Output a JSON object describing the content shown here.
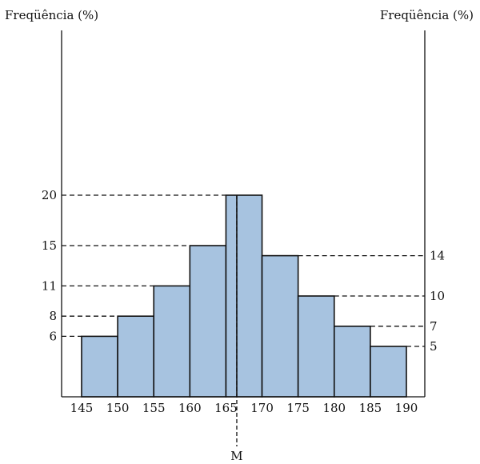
{
  "chart_data": {
    "type": "bar",
    "histogram": true,
    "bin_edges": [
      145,
      150,
      155,
      160,
      165,
      170,
      175,
      180,
      185,
      190
    ],
    "x_tick_labels": [
      "145",
      "150",
      "155",
      "160",
      "165",
      "170",
      "175",
      "180",
      "185",
      "190"
    ],
    "series": [
      {
        "bins": [
          [
            145,
            150
          ],
          [
            150,
            155
          ],
          [
            155,
            160
          ],
          [
            160,
            165
          ],
          [
            165,
            170
          ],
          [
            170,
            175
          ],
          [
            175,
            180
          ],
          [
            180,
            185
          ],
          [
            185,
            190
          ]
        ],
        "values": [
          6,
          8,
          11,
          15,
          20,
          14,
          10,
          7,
          5
        ]
      }
    ],
    "left_axis": {
      "title": "Freqüência (%)",
      "ticks": [
        6,
        8,
        11,
        15,
        20
      ]
    },
    "right_axis": {
      "title": "Freqüência (%)",
      "ticks": [
        14,
        10,
        7,
        5
      ]
    },
    "split_bar": {
      "left_edge": 165,
      "split": 166.5,
      "right_edge": 170,
      "value": 20
    },
    "marker": {
      "label": "M",
      "x": 166.5
    },
    "ylim": [
      0,
      20
    ],
    "xlim": [
      145,
      190
    ],
    "grid": false,
    "colors": {
      "bar_fill": "#a7c3e0",
      "bar_stroke": "#111111",
      "axis": "#111111"
    }
  }
}
